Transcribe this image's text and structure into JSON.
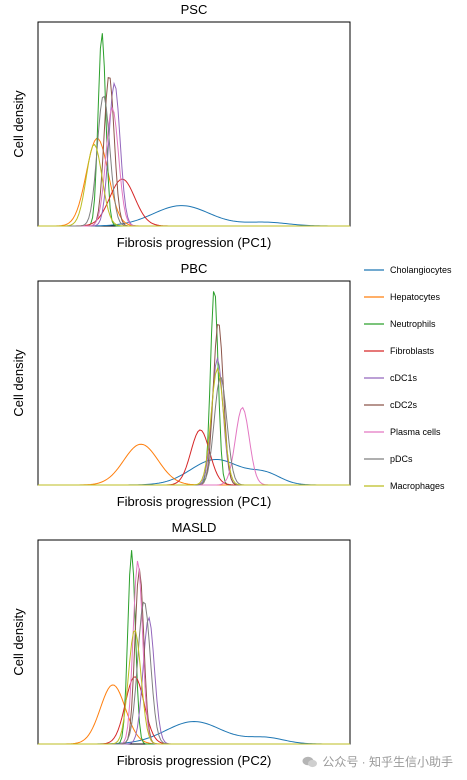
{
  "cell_types": [
    {
      "name": "Cholangiocytes",
      "color": "#1f77b4"
    },
    {
      "name": "Hepatocytes",
      "color": "#ff7f0e"
    },
    {
      "name": "Neutrophils",
      "color": "#2ca02c"
    },
    {
      "name": "Fibroblasts",
      "color": "#d62728"
    },
    {
      "name": "cDC1s",
      "color": "#9467bd"
    },
    {
      "name": "cDC2s",
      "color": "#8c564b"
    },
    {
      "name": "Plasma cells",
      "color": "#e377c2"
    },
    {
      "name": "pDCs",
      "color": "#7f7f7f"
    },
    {
      "name": "Macrophages",
      "color": "#bcbd22"
    }
  ],
  "legend_position": "right",
  "watermark": "公众号 · 知乎生信小助手",
  "chart_data": [
    {
      "type": "line",
      "title": "PSC",
      "xlabel": "Fibrosis progression (PC1)",
      "ylabel": "Cell density",
      "xlim": [
        0,
        1
      ],
      "ylim": [
        0,
        1
      ],
      "grid": false,
      "series": [
        {
          "name": "Cholangiocytes",
          "components": [
            [
              0.46,
              0.09,
              0.1
            ],
            [
              0.73,
              0.07,
              0.018
            ]
          ]
        },
        {
          "name": "Hepatocytes",
          "components": [
            [
              0.19,
              0.035,
              0.43
            ]
          ]
        },
        {
          "name": "Neutrophils",
          "components": [
            [
              0.205,
              0.012,
              0.95
            ]
          ]
        },
        {
          "name": "Fibroblasts",
          "components": [
            [
              0.27,
              0.04,
              0.23
            ]
          ]
        },
        {
          "name": "cDC1s",
          "components": [
            [
              0.245,
              0.018,
              0.7
            ]
          ]
        },
        {
          "name": "cDC2s",
          "components": [
            [
              0.228,
              0.016,
              0.74
            ]
          ]
        },
        {
          "name": "Plasma cells",
          "components": [
            [
              0.238,
              0.02,
              0.58
            ]
          ]
        },
        {
          "name": "pDCs",
          "components": [
            [
              0.21,
              0.02,
              0.64
            ]
          ]
        },
        {
          "name": "Macrophages",
          "components": [
            [
              0.18,
              0.025,
              0.4
            ]
          ]
        }
      ]
    },
    {
      "type": "line",
      "title": "PBC",
      "xlabel": "Fibrosis progression (PC1)",
      "ylabel": "Cell density",
      "xlim": [
        0,
        1
      ],
      "ylim": [
        0,
        1
      ],
      "grid": false,
      "series": [
        {
          "name": "Cholangiocytes",
          "components": [
            [
              0.57,
              0.08,
              0.125
            ],
            [
              0.73,
              0.05,
              0.05
            ]
          ]
        },
        {
          "name": "Hepatocytes",
          "components": [
            [
              0.33,
              0.055,
              0.2
            ]
          ]
        },
        {
          "name": "Neutrophils",
          "components": [
            [
              0.565,
              0.012,
              0.97
            ]
          ]
        },
        {
          "name": "Fibroblasts",
          "components": [
            [
              0.52,
              0.03,
              0.27
            ]
          ]
        },
        {
          "name": "cDC1s",
          "components": [
            [
              0.575,
              0.018,
              0.62
            ]
          ]
        },
        {
          "name": "cDC2s",
          "components": [
            [
              0.578,
              0.016,
              0.8
            ]
          ]
        },
        {
          "name": "Plasma cells",
          "components": [
            [
              0.655,
              0.022,
              0.38
            ]
          ]
        },
        {
          "name": "pDCs",
          "components": [
            [
              0.585,
              0.02,
              0.53
            ]
          ]
        },
        {
          "name": "Macrophages",
          "components": [
            [
              0.575,
              0.02,
              0.57
            ]
          ]
        }
      ]
    },
    {
      "type": "line",
      "title": "MASLD",
      "xlabel": "Fibrosis progression (PC2)",
      "ylabel": "Cell density",
      "xlim": [
        0,
        1
      ],
      "ylim": [
        0,
        1
      ],
      "grid": false,
      "series": [
        {
          "name": "Cholangiocytes",
          "components": [
            [
              0.5,
              0.09,
              0.11
            ],
            [
              0.73,
              0.06,
              0.03
            ]
          ]
        },
        {
          "name": "Hepatocytes",
          "components": [
            [
              0.24,
              0.04,
              0.29
            ]
          ]
        },
        {
          "name": "Neutrophils",
          "components": [
            [
              0.3,
              0.012,
              0.95
            ]
          ]
        },
        {
          "name": "Fibroblasts",
          "components": [
            [
              0.31,
              0.03,
              0.33
            ]
          ]
        },
        {
          "name": "cDC1s",
          "components": [
            [
              0.355,
              0.018,
              0.62
            ]
          ]
        },
        {
          "name": "cDC2s",
          "components": [
            [
              0.325,
              0.014,
              0.86
            ]
          ]
        },
        {
          "name": "Plasma cells",
          "components": [
            [
              0.32,
              0.015,
              0.9
            ]
          ]
        },
        {
          "name": "pDCs",
          "components": [
            [
              0.34,
              0.02,
              0.7
            ]
          ]
        },
        {
          "name": "Macrophages",
          "components": [
            [
              0.31,
              0.02,
              0.56
            ]
          ]
        }
      ]
    }
  ]
}
